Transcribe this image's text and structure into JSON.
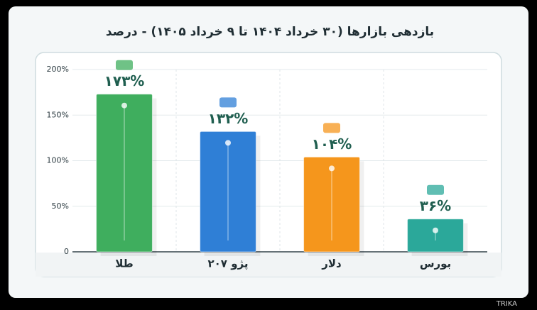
{
  "chart_data": {
    "type": "bar",
    "title": "بازدهی بازارها (۳۰ خرداد ۱۴۰۴ تا ۹ خرداد ۱۴۰۵) - درصد",
    "categories": [
      "طلا",
      "پژو ۲۰۷",
      "دلار",
      "بورس"
    ],
    "values": [
      173,
      132,
      104,
      36
    ],
    "value_labels": [
      "۱۷۳%",
      "۱۳۲%",
      "۱۰۴%",
      "۳۶%"
    ],
    "colors": [
      "#3fae5e",
      "#2f7fd6",
      "#f5961c",
      "#2ba89a"
    ],
    "ylim": [
      0,
      200
    ],
    "yticks": [
      0,
      {
        "value": 50,
        "label": "50%"
      },
      {
        "value": 100,
        "label": "100%"
      },
      {
        "value": 150,
        "label": "150%"
      },
      {
        "value": 200,
        "label": "200%"
      }
    ],
    "grid": true,
    "watermark": "TRIKA"
  }
}
